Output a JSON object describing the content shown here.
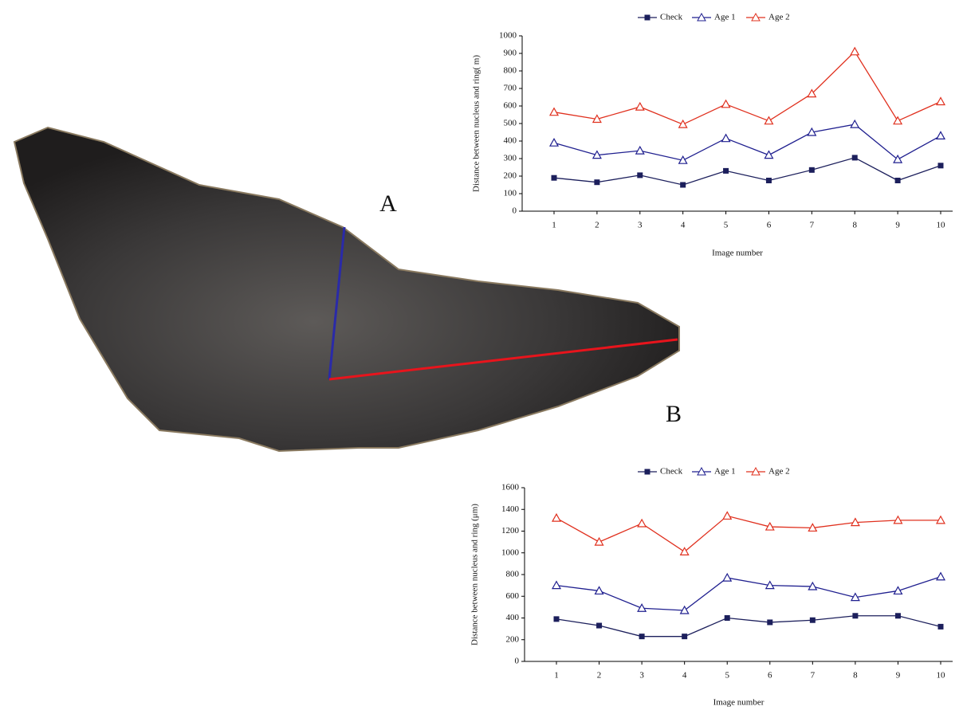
{
  "chart_data": [
    {
      "type": "line",
      "annotation": "A",
      "annotation_color": "#3b3fa8",
      "x_label": "Image number",
      "y_label": "Distance between nucleus and ring( m)",
      "categories": [
        "1",
        "2",
        "3",
        "4",
        "5",
        "6",
        "7",
        "8",
        "9",
        "10"
      ],
      "ylim": [
        0,
        1000
      ],
      "yticks": [
        0,
        100,
        200,
        300,
        400,
        500,
        600,
        700,
        800,
        900,
        1000
      ],
      "legend": "top",
      "series": [
        {
          "name": "Check",
          "color": "#1c1f5c",
          "marker": "square",
          "values": [
            190,
            165,
            205,
            150,
            230,
            175,
            235,
            305,
            175,
            260
          ]
        },
        {
          "name": "Age 1",
          "color": "#1f1f8f",
          "marker": "triangle",
          "values": [
            390,
            320,
            345,
            290,
            415,
            320,
            450,
            495,
            295,
            430
          ]
        },
        {
          "name": "Age 2",
          "color": "#e0301e",
          "marker": "triangle",
          "values": [
            565,
            525,
            595,
            495,
            610,
            515,
            670,
            910,
            515,
            625
          ]
        }
      ]
    },
    {
      "type": "line",
      "annotation": "B",
      "annotation_color": "#d42a2a",
      "x_label": "Image number",
      "y_label": "Distance between nucleus and ring (μm)",
      "categories": [
        "1",
        "2",
        "3",
        "4",
        "5",
        "6",
        "7",
        "8",
        "9",
        "10"
      ],
      "ylim": [
        0,
        1600
      ],
      "yticks": [
        0,
        200,
        400,
        600,
        800,
        1000,
        1200,
        1400,
        1600
      ],
      "legend": "top",
      "series": [
        {
          "name": "Check",
          "color": "#1c1f5c",
          "marker": "square",
          "values": [
            390,
            330,
            230,
            230,
            400,
            360,
            380,
            420,
            420,
            320
          ]
        },
        {
          "name": "Age 1",
          "color": "#1f1f8f",
          "marker": "triangle",
          "values": [
            700,
            650,
            490,
            470,
            770,
            700,
            690,
            590,
            650,
            780
          ]
        },
        {
          "name": "Age 2",
          "color": "#e0301e",
          "marker": "triangle",
          "values": [
            1320,
            1100,
            1270,
            1010,
            1340,
            1240,
            1230,
            1280,
            1300,
            1300
          ]
        }
      ]
    }
  ]
}
